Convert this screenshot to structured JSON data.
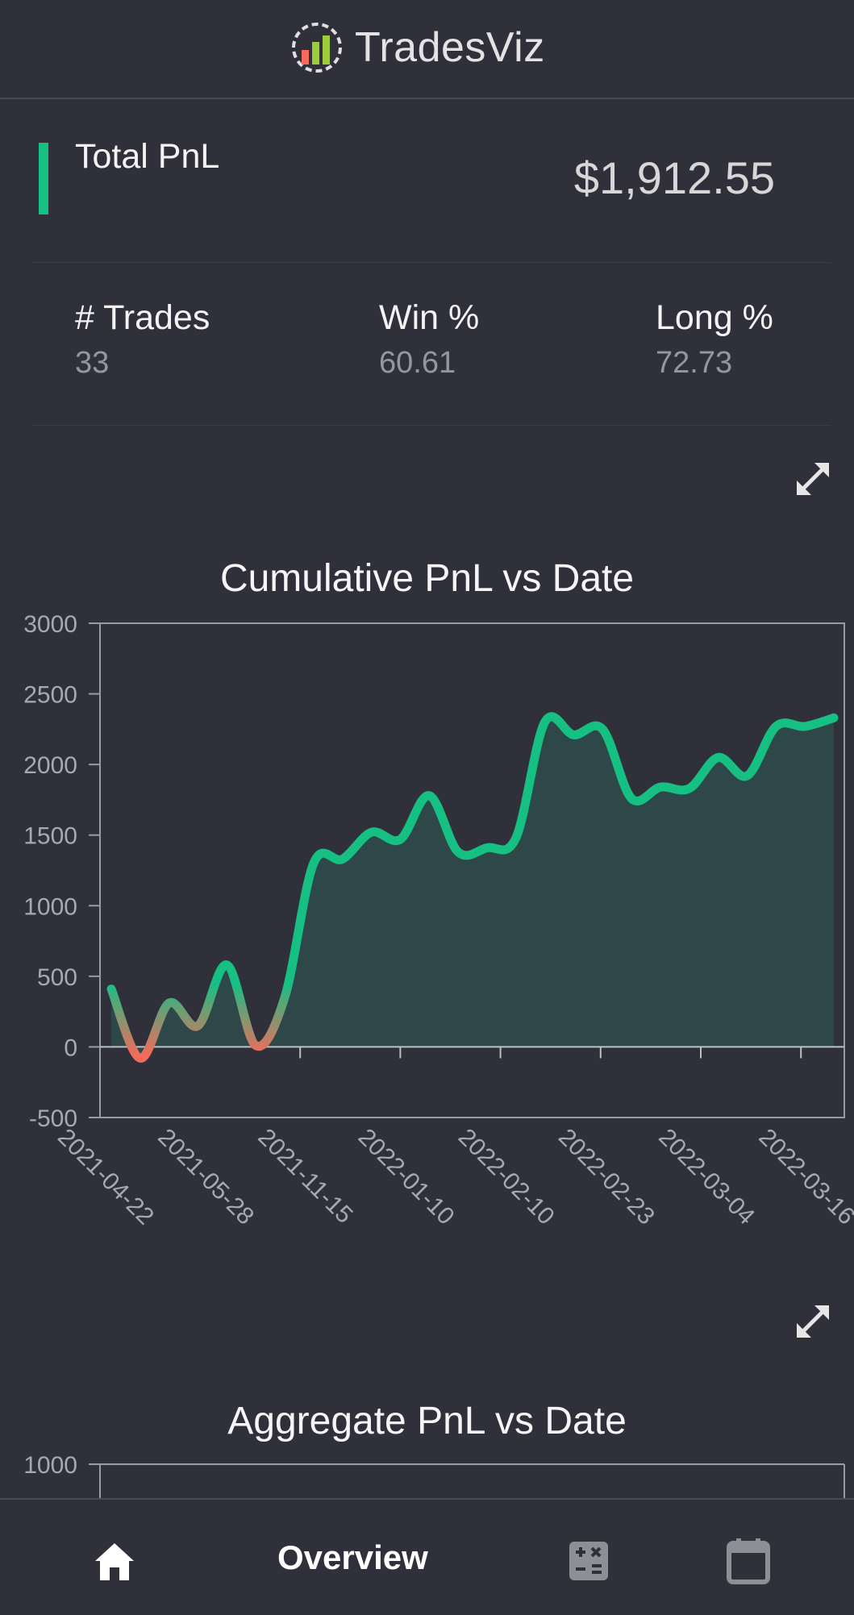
{
  "app": {
    "title": "TradesViz"
  },
  "summary": {
    "total_pnl_label": "Total PnL",
    "total_pnl_value": "$1,912.55",
    "accent_color": "#16c083"
  },
  "stats": [
    {
      "label": "# Trades",
      "value": "33"
    },
    {
      "label": "Win %",
      "value": "60.61"
    },
    {
      "label": "Long %",
      "value": "72.73"
    }
  ],
  "charts": {
    "cumulative_title": "Cumulative PnL vs Date",
    "aggregate_title": "Aggregate PnL vs Date"
  },
  "chart_data": [
    {
      "type": "area",
      "title": "Cumulative PnL vs Date",
      "xlabel": "",
      "ylabel": "",
      "ylim": [
        -500,
        3000
      ],
      "yticks": [
        "3000",
        "2500",
        "2000",
        "1500",
        "1000",
        "500",
        "0",
        "-500"
      ],
      "xticks": [
        "2021-04-22",
        "2021-05-28",
        "2021-11-15",
        "2022-01-10",
        "2022-02-10",
        "2022-02-23",
        "2022-03-04",
        "2022-03-16"
      ],
      "grid": false,
      "line_colors": {
        "negative": "#f26b5b",
        "positive": "#16c083"
      },
      "values": [
        410,
        -80,
        310,
        150,
        580,
        10,
        350,
        1300,
        1330,
        1520,
        1470,
        1780,
        1380,
        1410,
        1480,
        2300,
        2210,
        2250,
        1760,
        1840,
        1830,
        2050,
        1920,
        2270,
        2270,
        2330
      ]
    },
    {
      "type": "bar",
      "title": "Aggregate PnL vs Date",
      "yticks": [
        "1000"
      ]
    }
  ],
  "nav": {
    "overview_label": "Overview",
    "items": [
      "home-icon",
      "calculator-icon",
      "calendar-icon"
    ]
  }
}
